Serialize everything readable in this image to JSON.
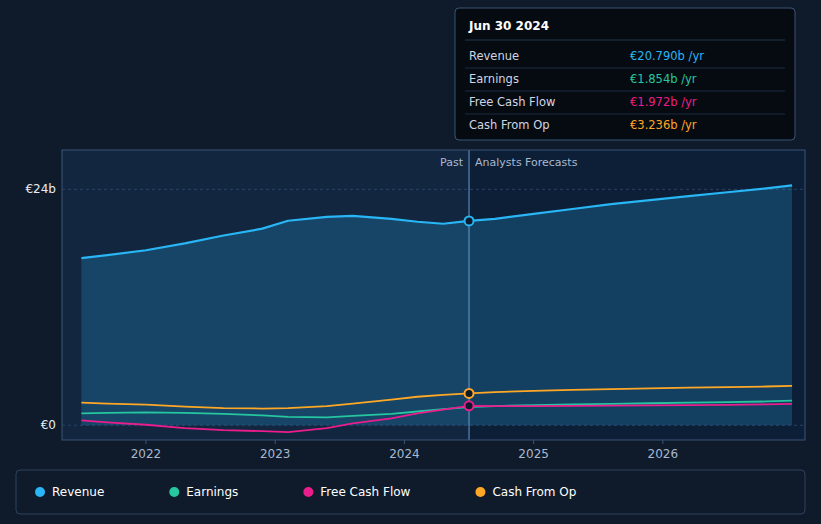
{
  "chart_data": {
    "type": "line",
    "x": [
      2021.5,
      2021.7,
      2022.0,
      2022.3,
      2022.6,
      2022.9,
      2023.1,
      2023.4,
      2023.6,
      2023.9,
      2024.1,
      2024.3,
      2024.5,
      2024.7,
      2025.0,
      2025.3,
      2025.6,
      2025.9,
      2026.2,
      2026.5,
      2026.8,
      2027.0
    ],
    "series": [
      {
        "name": "Revenue",
        "type": "area",
        "color": "#29b6f6",
        "values": [
          17.0,
          17.3,
          17.8,
          18.5,
          19.3,
          20.0,
          20.8,
          21.2,
          21.3,
          21.0,
          20.7,
          20.5,
          20.79,
          21.0,
          21.5,
          22.0,
          22.5,
          22.9,
          23.3,
          23.7,
          24.1,
          24.4
        ]
      },
      {
        "name": "Earnings",
        "type": "line",
        "color": "#26c6a0",
        "values": [
          1.2,
          1.25,
          1.3,
          1.25,
          1.15,
          1.0,
          0.85,
          0.8,
          0.95,
          1.15,
          1.4,
          1.65,
          1.854,
          1.95,
          2.05,
          2.12,
          2.18,
          2.24,
          2.3,
          2.36,
          2.42,
          2.5
        ]
      },
      {
        "name": "Free Cash Flow",
        "type": "line",
        "color": "#e91e8c",
        "values": [
          0.5,
          0.3,
          0.05,
          -0.3,
          -0.5,
          -0.6,
          -0.7,
          -0.3,
          0.2,
          0.7,
          1.2,
          1.6,
          1.972,
          1.95,
          1.95,
          1.97,
          1.99,
          2.02,
          2.05,
          2.08,
          2.12,
          2.18
        ]
      },
      {
        "name": "Cash From Op",
        "type": "line",
        "color": "#ffa726",
        "values": [
          2.3,
          2.2,
          2.1,
          1.9,
          1.75,
          1.7,
          1.75,
          1.95,
          2.2,
          2.6,
          2.9,
          3.1,
          3.236,
          3.38,
          3.5,
          3.6,
          3.68,
          3.76,
          3.83,
          3.88,
          3.94,
          4.0
        ]
      }
    ],
    "xlim": [
      2021.35,
      2027.1
    ],
    "xticks": [
      2022,
      2023,
      2024,
      2025,
      2026
    ],
    "ylim": [
      -1.5,
      28
    ],
    "yticks": [
      {
        "value": 0,
        "label": "€0"
      },
      {
        "value": 24,
        "label": "€24b"
      }
    ],
    "grid": true,
    "legend": "bottom",
    "divider": {
      "x": 2024.5,
      "labels": [
        "Past",
        "Analysts Forecasts"
      ]
    },
    "tooltip": {
      "title": "Jun 30 2024",
      "names": [
        "Revenue",
        "Earnings",
        "Free Cash Flow",
        "Cash From Op"
      ],
      "values": [
        20.79,
        1.854,
        1.972,
        3.236
      ],
      "value_labels": [
        "€20.790b /yr",
        "€1.854b /yr",
        "€1.972b /yr",
        "€3.236b /yr"
      ],
      "colors": [
        "#29b6f6",
        "#26c6a0",
        "#e91e8c",
        "#ffa726"
      ],
      "markers": [
        true,
        false,
        true,
        true
      ]
    }
  }
}
